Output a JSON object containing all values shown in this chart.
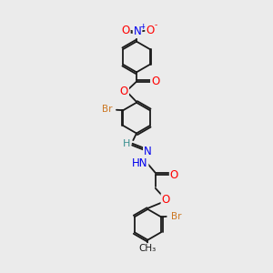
{
  "bg_color": "#ebebeb",
  "bond_color": "#1a1a1a",
  "bond_lw": 1.3,
  "atom_colors": {
    "O": "#ff0000",
    "N": "#0000ee",
    "Br": "#cc7722",
    "C": "#1a1a1a",
    "teal": "#3a9090"
  },
  "fs": 7.5,
  "figsize": [
    3.0,
    3.0
  ],
  "dpi": 100,
  "xlim": [
    2.5,
    8.5
  ],
  "ylim": [
    0.0,
    14.5
  ]
}
